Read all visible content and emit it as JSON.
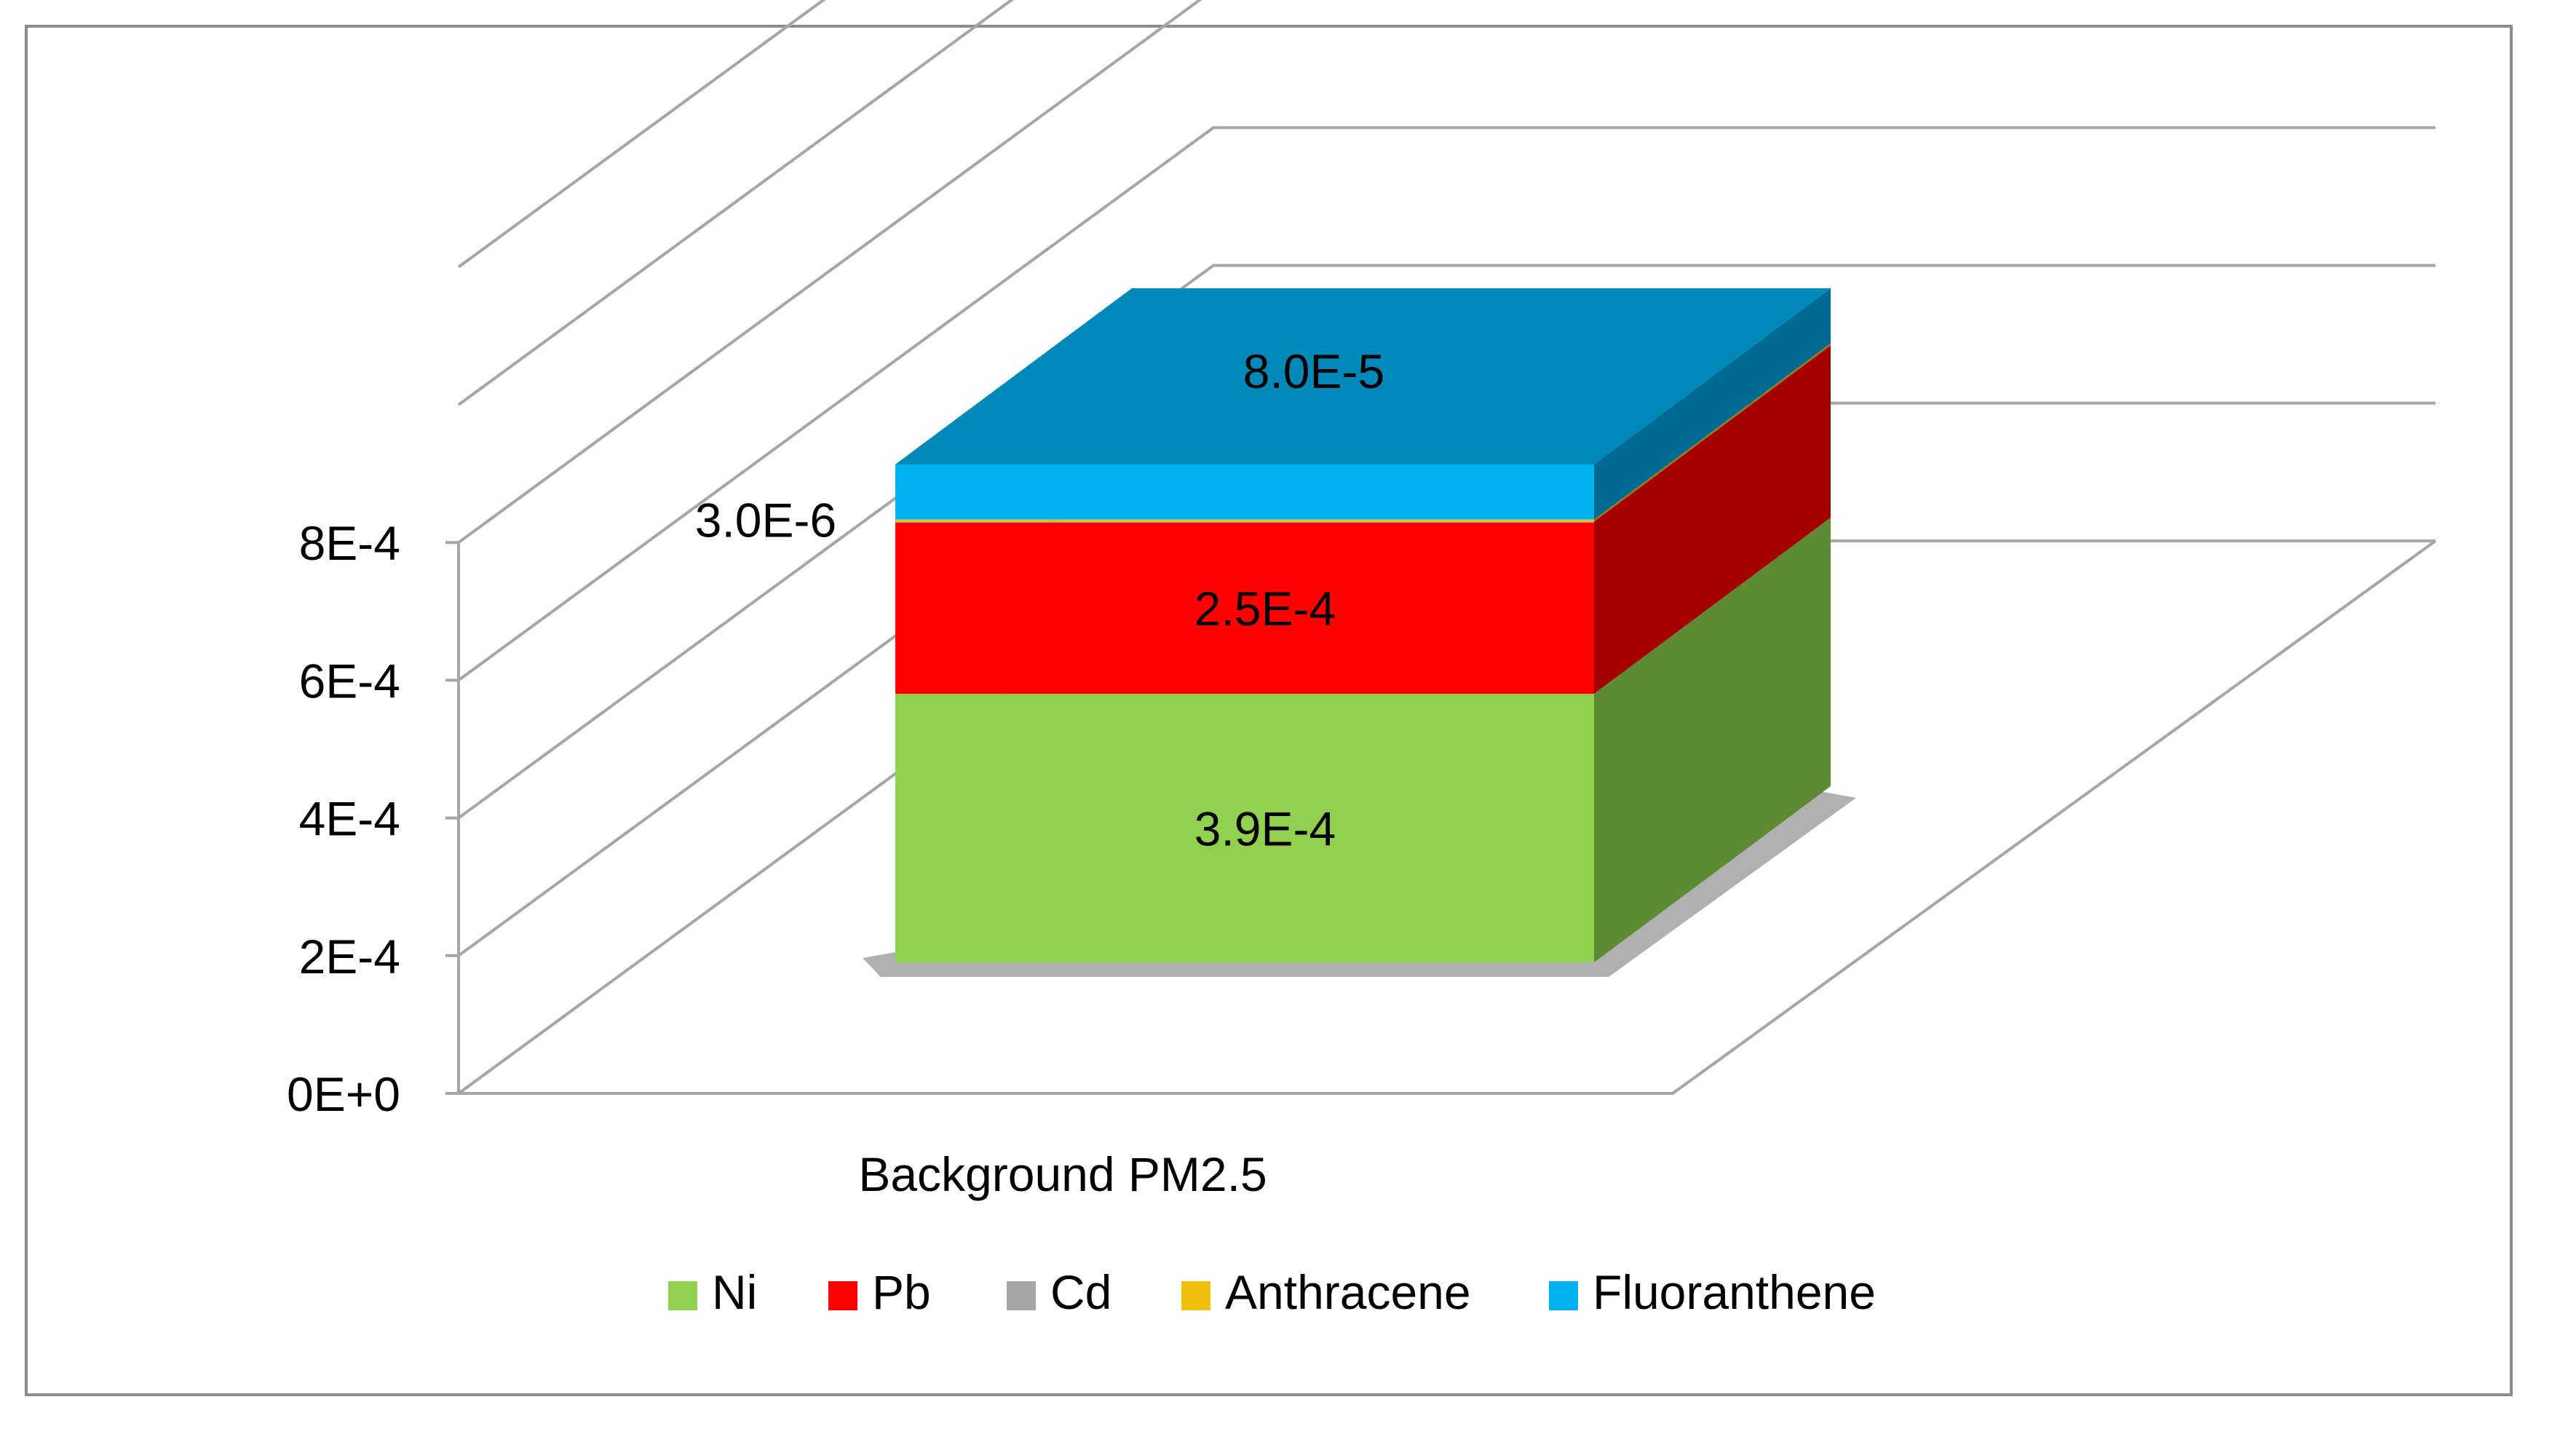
{
  "chart_data": {
    "type": "bar",
    "stacked": true,
    "three_d": true,
    "categories": [
      "Background PM2.5"
    ],
    "series": [
      {
        "name": "Ni",
        "values": [
          0.00039
        ],
        "color": "#92d050",
        "side_color": "#5e8a33",
        "label": "3.9E-4"
      },
      {
        "name": "Pb",
        "values": [
          0.00025
        ],
        "color": "#ff0000",
        "side_color": "#a40000",
        "label": "2.5E-4"
      },
      {
        "name": "Cd",
        "values": [
          1e-07
        ],
        "color": "#a6a6a6",
        "side_color": "#6e6e6e",
        "label": ""
      },
      {
        "name": "Anthracene",
        "values": [
          3e-06
        ],
        "color": "#f0c010",
        "side_color": "#9a7a00",
        "label": "3.0E-6"
      },
      {
        "name": "Fluoranthene",
        "values": [
          8e-05
        ],
        "color": "#00b0f0",
        "side_color": "#006a92",
        "label": "8.0E-5"
      }
    ],
    "top_color": "#0088b8",
    "yticks": [
      "0E+0",
      "2E-4",
      "4E-4",
      "6E-4",
      "8E-4"
    ],
    "ytick_values": [
      0,
      0.0002,
      0.0004,
      0.0006,
      0.0008
    ],
    "ylim": [
      0,
      0.0012
    ],
    "grid": true,
    "legend_position": "bottom",
    "gridline_color": "#a6a6a6"
  }
}
